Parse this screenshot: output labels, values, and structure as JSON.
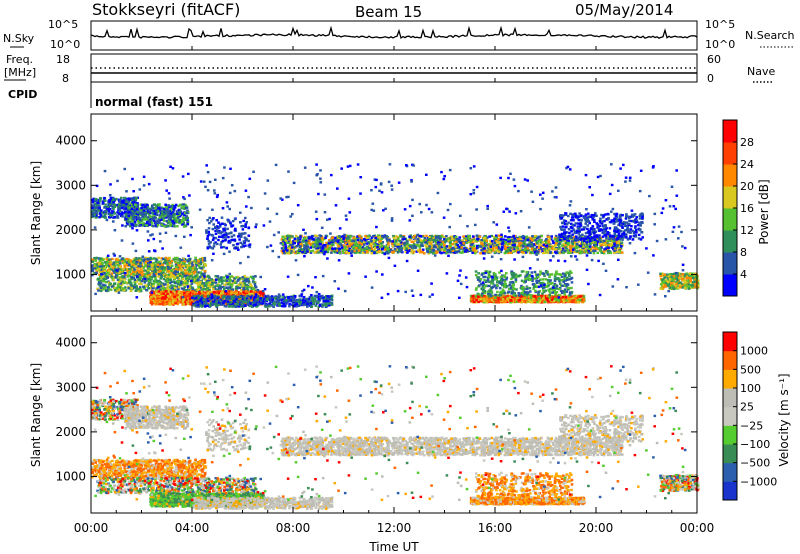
{
  "header": {
    "station": "Stokkseyri (fitACF)",
    "beam": "Beam 15",
    "date": "05/May/2014"
  },
  "noise_panel": {
    "left_label": "N.Sky",
    "right_label": "N.Search",
    "left_ticks": [
      "10^5",
      "10^0"
    ],
    "right_ticks": [
      "10^5",
      "10^0"
    ]
  },
  "freq_panel": {
    "left_label_1": "Freq.",
    "left_label_2": "[MHz]",
    "left_ticks": [
      "18",
      "8"
    ],
    "right_label": "Nave",
    "right_ticks": [
      "60",
      "0"
    ]
  },
  "cpid_panel": {
    "label": "CPID",
    "mode": "normal (fast) 151"
  },
  "chart_data": [
    {
      "type": "heatmap",
      "name": "power",
      "ylabel": "Slant Range [km]",
      "y_ticks": [
        "1000",
        "2000",
        "3000",
        "4000"
      ],
      "y_tick_values": [
        1000,
        2000,
        3000,
        4000
      ],
      "ylim": [
        180,
        4600
      ],
      "xlim_hours": [
        0,
        24
      ],
      "colorbar_label": "Power [dB]",
      "colorbar_ticks": [
        "4",
        "8",
        "12",
        "16",
        "20",
        "24",
        "28"
      ],
      "colorbar_colors": [
        "#0000ff",
        "#2855a8",
        "#2f8f5a",
        "#55c030",
        "#d8c820",
        "#ff8800",
        "#ff4000",
        "#ff0000"
      ]
    },
    {
      "type": "heatmap",
      "name": "velocity",
      "ylabel": "Slant Range [km]",
      "y_ticks": [
        "1000",
        "2000",
        "3000",
        "4000"
      ],
      "y_tick_values": [
        1000,
        2000,
        3000,
        4000
      ],
      "ylim": [
        180,
        4600
      ],
      "xlim_hours": [
        0,
        24
      ],
      "colorbar_label": "Velocity [m s⁻¹]",
      "colorbar_ticks": [
        "1000",
        "500",
        "100",
        "25",
        "−25",
        "−100",
        "−500",
        "−1000"
      ],
      "colorbar_colors": [
        "#1a33cc",
        "#2d5faf",
        "#3a8c55",
        "#55cc30",
        "#c8c8c0",
        "#bdbdb5",
        "#ffaa00",
        "#ff6600",
        "#ff0000"
      ]
    }
  ],
  "time_axis": {
    "ticks": [
      "00:00",
      "04:00",
      "08:00",
      "12:00",
      "16:00",
      "20:00",
      "00:00"
    ],
    "label": "Time UT"
  }
}
